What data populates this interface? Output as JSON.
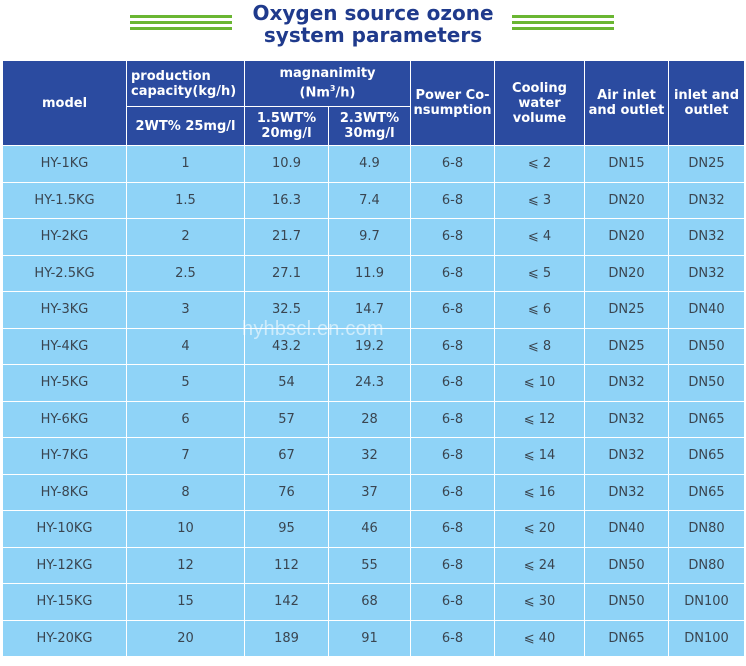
{
  "title": {
    "line1": "Oxygen source ozone",
    "line2": "system parameters"
  },
  "headers": {
    "model": "model",
    "capacity": "production capacity(kg/h)",
    "magnanimity": "magnanimity",
    "magnanimity_unit_pre": "(Nm",
    "magnanimity_unit_sup": "3",
    "magnanimity_unit_post": "/h)",
    "power": "Power Co-nsumption",
    "cooling": "Cooling water volume",
    "air": "Air inlet and outlet",
    "inlet": "inlet and outlet",
    "sub_capacity": "2WT% 25mg/l",
    "sub_mag1": "1.5WT% 20mg/l",
    "sub_mag2": "2.3WT% 30mg/l"
  },
  "rows": [
    [
      "HY-1KG",
      "1",
      "10.9",
      "4.9",
      "6-8",
      "⩽ 2",
      "DN15",
      "DN25"
    ],
    [
      "HY-1.5KG",
      "1.5",
      "16.3",
      "7.4",
      "6-8",
      "⩽ 3",
      "DN20",
      "DN32"
    ],
    [
      "HY-2KG",
      "2",
      "21.7",
      "9.7",
      "6-8",
      "⩽ 4",
      "DN20",
      "DN32"
    ],
    [
      "HY-2.5KG",
      "2.5",
      "27.1",
      "11.9",
      "6-8",
      "⩽ 5",
      "DN20",
      "DN32"
    ],
    [
      "HY-3KG",
      "3",
      "32.5",
      "14.7",
      "6-8",
      "⩽ 6",
      "DN25",
      "DN40"
    ],
    [
      "HY-4KG",
      "4",
      "43.2",
      "19.2",
      "6-8",
      "⩽ 8",
      "DN25",
      "DN50"
    ],
    [
      "HY-5KG",
      "5",
      "54",
      "24.3",
      "6-8",
      "⩽ 10",
      "DN32",
      "DN50"
    ],
    [
      "HY-6KG",
      "6",
      "57",
      "28",
      "6-8",
      "⩽ 12",
      "DN32",
      "DN65"
    ],
    [
      "HY-7KG",
      "7",
      "67",
      "32",
      "6-8",
      "⩽ 14",
      "DN32",
      "DN65"
    ],
    [
      "HY-8KG",
      "8",
      "76",
      "37",
      "6-8",
      "⩽ 16",
      "DN32",
      "DN65"
    ],
    [
      "HY-10KG",
      "10",
      "95",
      "46",
      "6-8",
      "⩽ 20",
      "DN40",
      "DN80"
    ],
    [
      "HY-12KG",
      "12",
      "112",
      "55",
      "6-8",
      "⩽ 24",
      "DN50",
      "DN80"
    ],
    [
      "HY-15KG",
      "15",
      "142",
      "68",
      "6-8",
      "⩽ 30",
      "DN50",
      "DN100"
    ],
    [
      "HY-20KG",
      "20",
      "189",
      "91",
      "6-8",
      "⩽ 40",
      "DN65",
      "DN100"
    ]
  ],
  "watermark": "hyhbscl.en.com",
  "colors": {
    "header_bg": "#2b4ba0",
    "cell_bg": "#8fd3f7",
    "title": "#1f3a8c",
    "accent_lines": "#6ab632"
  }
}
